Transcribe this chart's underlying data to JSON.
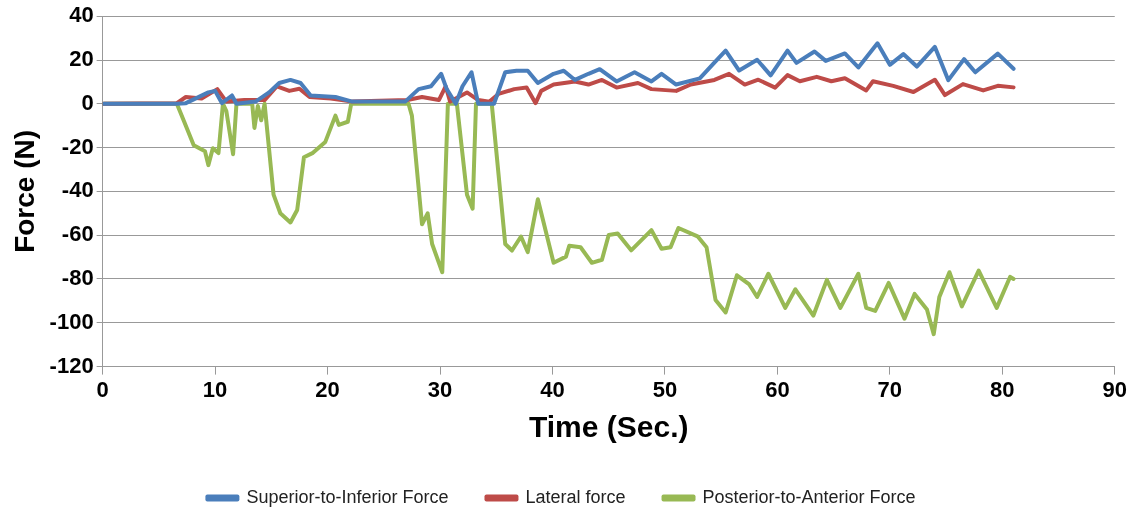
{
  "chart_data": {
    "type": "line",
    "xlabel": "Time (Sec.)",
    "ylabel": "Force (N)",
    "xlim": [
      0,
      90
    ],
    "xticks": [
      0,
      10,
      20,
      30,
      40,
      50,
      60,
      70,
      80,
      90
    ],
    "ylim": [
      -120,
      40
    ],
    "yticks": [
      -120,
      -100,
      -80,
      -60,
      -40,
      -20,
      0,
      20,
      40
    ],
    "grid": "y",
    "legend": "bottom",
    "marker": "none",
    "line_style": "solid",
    "series": [
      {
        "name": "Superior-to-Inferior Force",
        "color": "#4a7ebb",
        "x": [
          0.1,
          6.6,
          7.4,
          9.4,
          10.0,
          10.6,
          11.5,
          11.9,
          13.6,
          14.8,
          15.7,
          16.7,
          17.6,
          18.5,
          20.7,
          22.2,
          26.9,
          28.1,
          29.2,
          30.1,
          30.6,
          31.4,
          32.0,
          32.8,
          33.4,
          34.8,
          35.8,
          36.8,
          37.8,
          38.7,
          40.1,
          41.0,
          42.0,
          43.2,
          44.2,
          45.7,
          47.3,
          48.8,
          49.7,
          51.0,
          53.1,
          54.5,
          55.4,
          56.6,
          58.2,
          59.4,
          60.9,
          61.7,
          63.3,
          64.3,
          66.0,
          67.2,
          68.9,
          70.0,
          71.2,
          72.4,
          74.0,
          75.2,
          76.6,
          77.6,
          79.6,
          81.0
        ],
        "values": [
          0,
          0,
          0.3,
          5.2,
          5.9,
          0.3,
          3.8,
          0,
          1,
          5.2,
          9.5,
          10.9,
          9.5,
          3.8,
          3.1,
          1,
          1,
          6.7,
          8,
          13.7,
          6.7,
          0,
          8,
          14.4,
          0,
          0,
          14.4,
          15.1,
          15.1,
          9.5,
          13.7,
          15.1,
          10.9,
          13.7,
          15.8,
          10.2,
          14.4,
          10.2,
          13.7,
          8.8,
          11.6,
          19.4,
          24.3,
          15.2,
          20.1,
          13,
          24.3,
          18.7,
          23.9,
          19.6,
          23,
          16.6,
          27.6,
          17.8,
          22.7,
          17,
          26,
          10.8,
          20.4,
          14.4,
          22.9,
          16
        ]
      },
      {
        "name": "Lateral force",
        "color": "#be4b48",
        "x": [
          0.1,
          6.6,
          7.4,
          8.8,
          10.2,
          11.0,
          12.6,
          14.4,
          15.5,
          16.6,
          17.5,
          18.4,
          20.3,
          22.2,
          27.1,
          28.4,
          29.9,
          30.5,
          30.9,
          32.4,
          33.4,
          34.4,
          35.2,
          36.6,
          37.7,
          38.5,
          39.0,
          40.1,
          42.0,
          43.2,
          44.4,
          45.7,
          47.6,
          48.8,
          51.0,
          52.3,
          54.4,
          55.7,
          57.1,
          58.3,
          59.8,
          60.9,
          62.0,
          63.5,
          64.8,
          66.0,
          67.9,
          68.5,
          70.3,
          72.1,
          74.0,
          74.9,
          76.5,
          78.3,
          79.6,
          81.0
        ],
        "values": [
          0,
          0.3,
          3.1,
          2.4,
          6.7,
          1,
          1.7,
          1.7,
          8,
          5.9,
          6.9,
          3.1,
          2.4,
          1,
          1.7,
          3.1,
          1.7,
          8,
          1,
          5.2,
          1.7,
          1,
          4.5,
          6.7,
          7.4,
          0.3,
          5.9,
          8.8,
          10.2,
          8.8,
          10.9,
          7.4,
          9.5,
          6.7,
          5.9,
          8.8,
          10.9,
          13.7,
          8.8,
          11,
          7.4,
          13.1,
          10.3,
          12.3,
          10.3,
          11.7,
          6.1,
          10.3,
          8.2,
          5.4,
          11,
          4,
          9,
          6.1,
          8.2,
          7.5
        ]
      },
      {
        "name": "Posterior-to-Anterior Force",
        "color": "#98b954",
        "x": [
          0.1,
          6.6,
          7.2,
          8.1,
          9.1,
          9.4,
          9.8,
          10.3,
          10.7,
          11.0,
          11.6,
          11.9,
          13.3,
          13.5,
          13.8,
          14.1,
          14.4,
          15.2,
          15.8,
          16.7,
          17.3,
          17.9,
          18.7,
          19.8,
          20.7,
          21.0,
          21.8,
          22.1,
          27.2,
          27.5,
          28.4,
          28.9,
          29.3,
          30.2,
          30.7,
          31.5,
          32.4,
          32.9,
          33.2,
          34.6,
          35.8,
          36.4,
          37.2,
          37.8,
          38.7,
          40.1,
          41.2,
          41.5,
          42.5,
          43.5,
          44.4,
          45.0,
          45.8,
          47.0,
          48.8,
          49.7,
          50.5,
          51.2,
          52.9,
          53.7,
          54.5,
          55.4,
          56.4,
          57.5,
          58.2,
          59.2,
          60.7,
          61.6,
          63.2,
          64.4,
          65.6,
          67.2,
          67.9,
          68.7,
          69.9,
          71.3,
          72.2,
          73.3,
          73.9,
          74.4,
          75.3,
          76.4,
          77.9,
          79.5,
          80.7,
          81.0
        ],
        "values": [
          0,
          0,
          -7.5,
          -18.9,
          -21.7,
          -28,
          -20.3,
          -22.5,
          0,
          -3.3,
          -23,
          0,
          0,
          -11,
          -1,
          -7.5,
          0,
          -41.5,
          -50,
          -54.2,
          -48.5,
          -24.4,
          -22.4,
          -17.4,
          -5.4,
          -9.6,
          -8.2,
          0,
          0,
          -5.4,
          -55,
          -50,
          -64,
          -76.9,
          0,
          0,
          -41.5,
          -47.9,
          0,
          0,
          -64,
          -67,
          -60.6,
          -67.7,
          -43.6,
          -72.6,
          -69.8,
          -64.8,
          -65.5,
          -72.6,
          -71.2,
          -59.9,
          -59.2,
          -66.9,
          -57.7,
          -66.2,
          -65.5,
          -56.7,
          -60.5,
          -65.5,
          -89.6,
          -95.3,
          -78.3,
          -82.5,
          -88.2,
          -77.6,
          -93.2,
          -84.7,
          -96.7,
          -80.4,
          -93.2,
          -77.6,
          -93.2,
          -94.6,
          -81.8,
          -98.1,
          -86.8,
          -93.9,
          -105.2,
          -88.2,
          -76.9,
          -92.5,
          -76.2,
          -93.2,
          -79,
          -80
        ]
      }
    ]
  }
}
